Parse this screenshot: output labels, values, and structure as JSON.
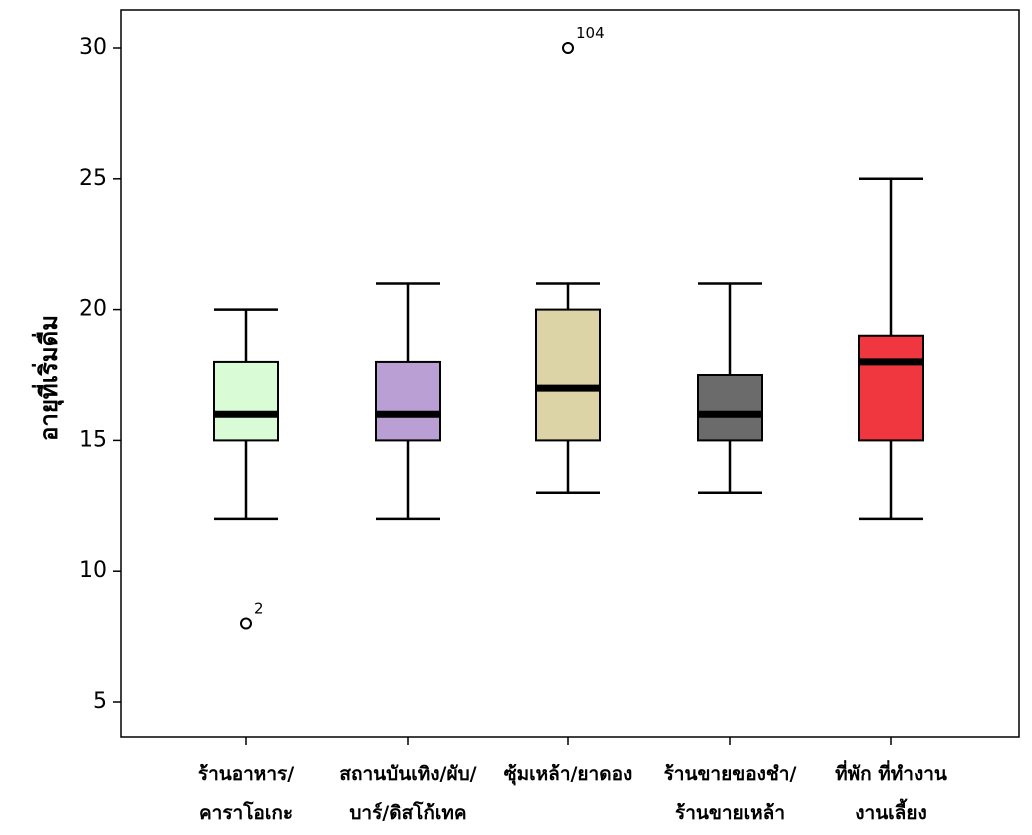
{
  "chart_data": {
    "type": "boxplot",
    "ylabel": "อายุที่เริ่มดื่ม",
    "xlabel": "",
    "ylim": [
      3.5,
      31.5
    ],
    "yticks": [
      5,
      10,
      15,
      20,
      25,
      30
    ],
    "grid": false,
    "categories": [
      {
        "lines": [
          "ร้านอาหาร/",
          "คาราโอเกะ"
        ],
        "color": "#d9fbd6",
        "min": 12,
        "q1": 15,
        "median": 16,
        "q3": 18,
        "max": 20,
        "outliers": [
          {
            "value": 8,
            "label": "2"
          }
        ]
      },
      {
        "lines": [
          "สถานบันเทิง/ผับ/",
          "บาร์/ดิสโก้เทค"
        ],
        "color": "#b99fd3",
        "min": 12,
        "q1": 15,
        "median": 16,
        "q3": 18,
        "max": 21,
        "outliers": []
      },
      {
        "lines": [
          "ซุ้มเหล้า/ยาดอง",
          ""
        ],
        "color": "#dcd3a6",
        "min": 13,
        "q1": 15,
        "median": 17,
        "q3": 20,
        "max": 21,
        "outliers": [
          {
            "value": 30,
            "label": "104"
          }
        ]
      },
      {
        "lines": [
          "ร้านขายของชำ/",
          "ร้านขายเหล้า"
        ],
        "color": "#6b6b6b",
        "min": 13,
        "q1": 15,
        "median": 16,
        "q3": 17.5,
        "max": 21,
        "outliers": []
      },
      {
        "lines": [
          "ที่พัก ที่ทำงาน",
          "งานเลี้ยง"
        ],
        "color": "#f0373f",
        "min": 12,
        "q1": 15,
        "median": 18,
        "q3": 19,
        "max": 25,
        "outliers": []
      }
    ]
  }
}
